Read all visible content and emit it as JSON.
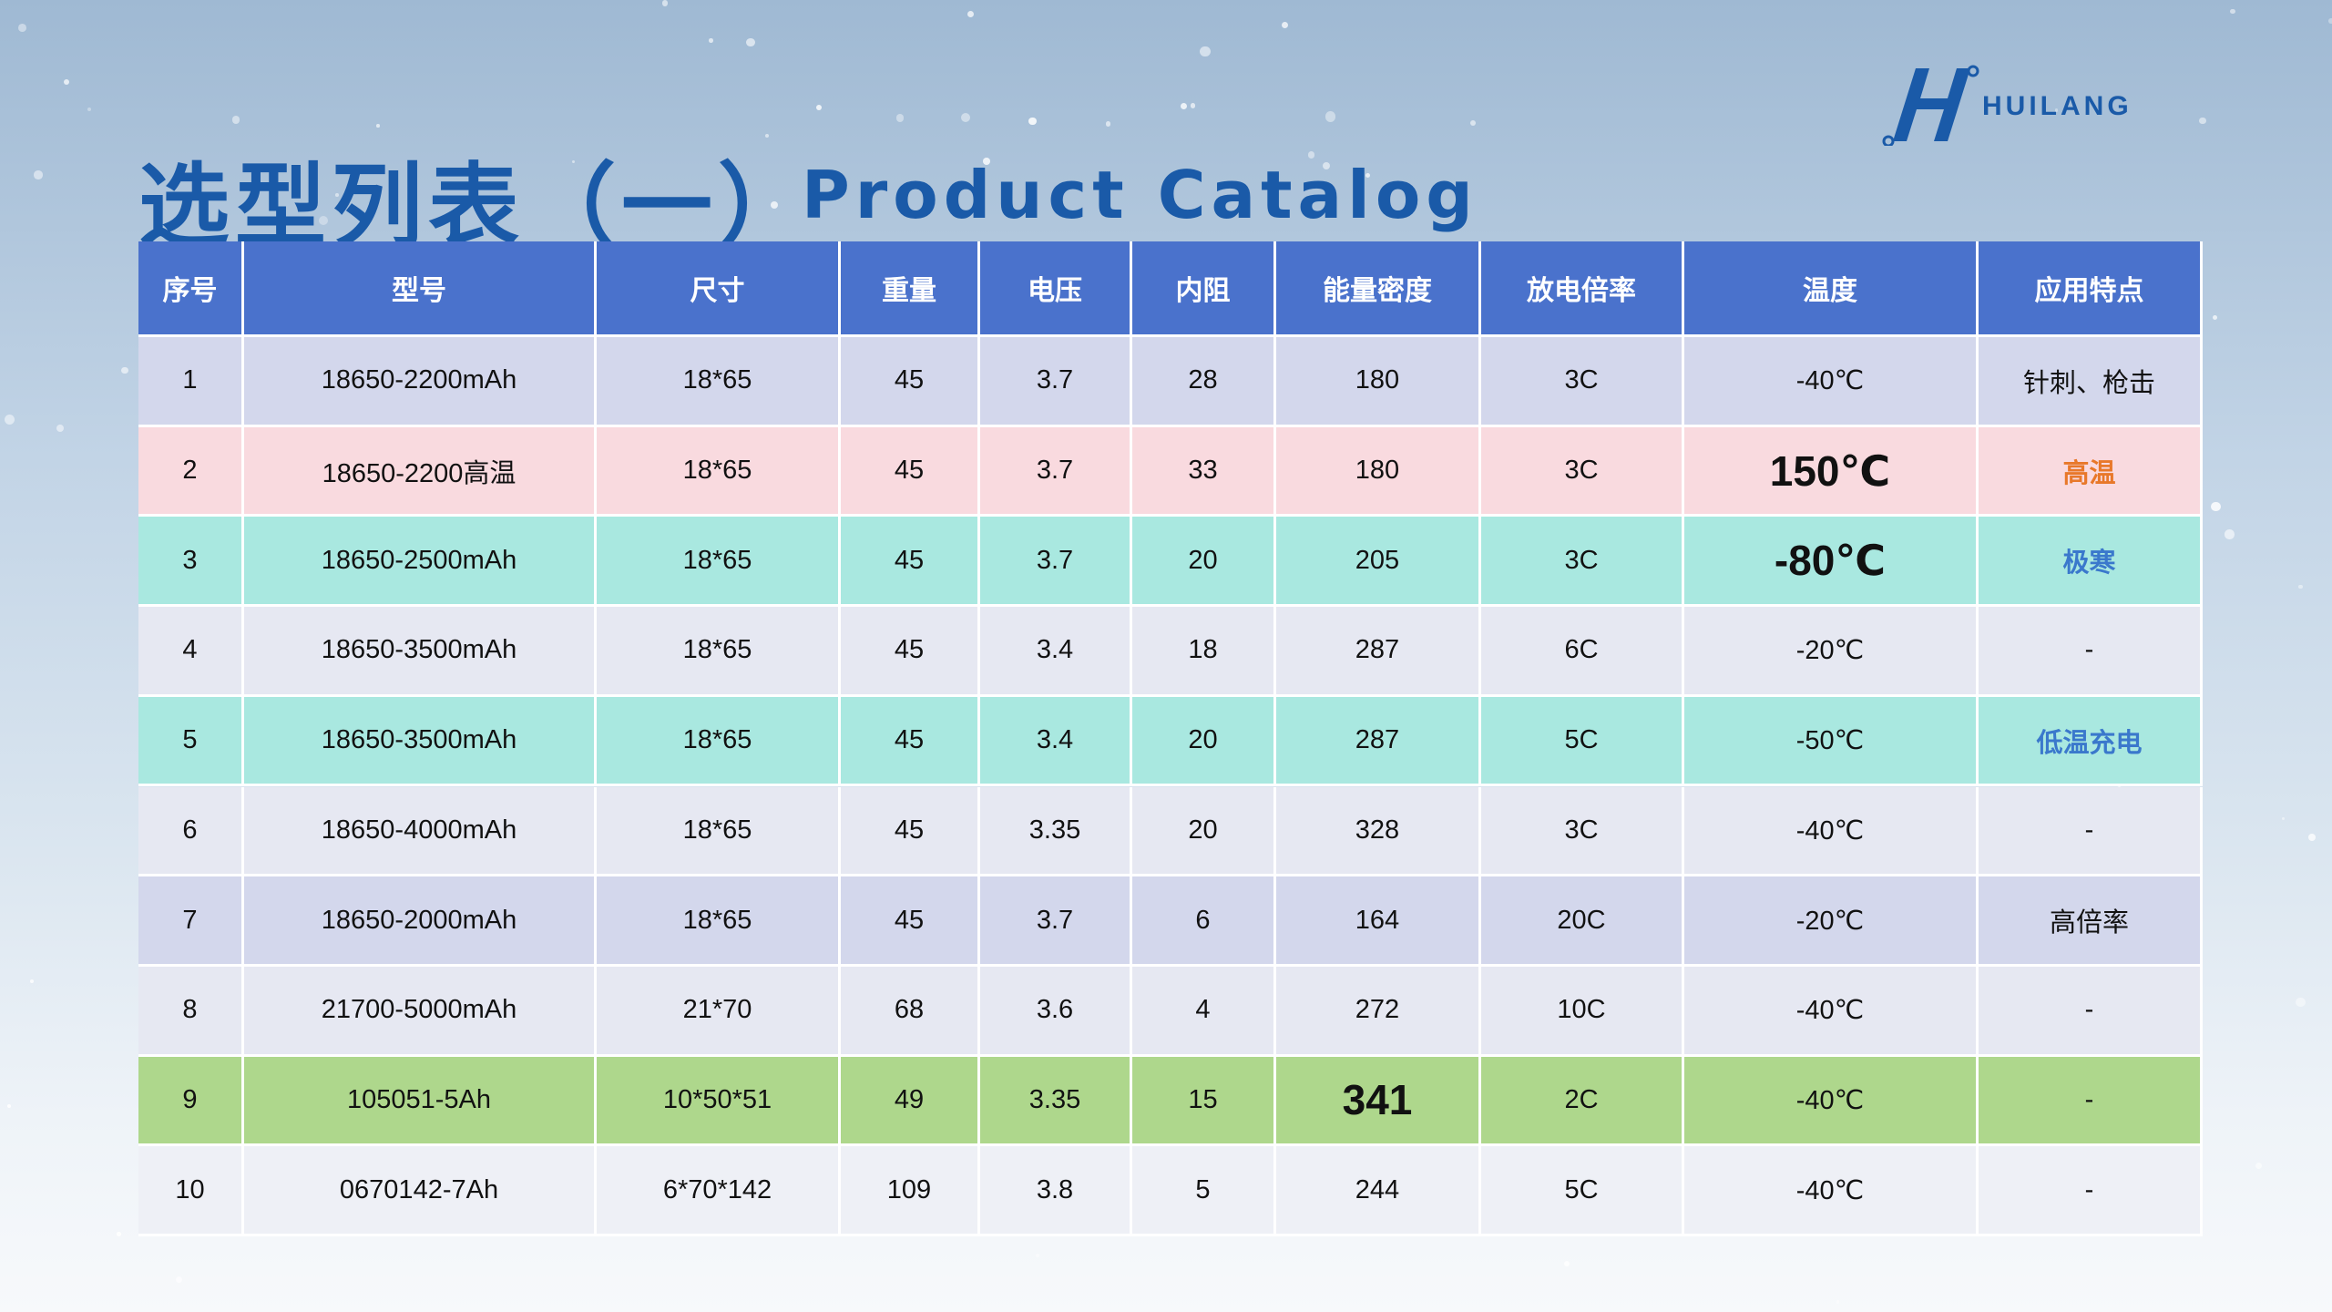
{
  "header": {
    "title": "选型列表（一）",
    "subtitle": "Product Catalog",
    "logo": "HUILANG"
  },
  "table": {
    "columns": [
      "序号",
      "型号",
      "尺寸",
      "重量",
      "电压",
      "内阻",
      "能量密度",
      "放电倍率",
      "温度",
      "应用特点"
    ],
    "rows": [
      [
        "1",
        "18650-2200mAh",
        "18*65",
        "45",
        "3.7",
        "28",
        "180",
        "3C",
        "-40℃",
        "针刺、枪击"
      ],
      [
        "2",
        "18650-2200高温",
        "18*65",
        "45",
        "3.7",
        "33",
        "180",
        "3C",
        "150℃",
        "高温"
      ],
      [
        "3",
        "18650-2500mAh",
        "18*65",
        "45",
        "3.7",
        "20",
        "205",
        "3C",
        "-80℃",
        "极寒"
      ],
      [
        "4",
        "18650-3500mAh",
        "18*65",
        "45",
        "3.4",
        "18",
        "287",
        "6C",
        "-20℃",
        "-"
      ],
      [
        "5",
        "18650-3500mAh",
        "18*65",
        "45",
        "3.4",
        "20",
        "287",
        "5C",
        "-50℃",
        "低温充电"
      ],
      [
        "6",
        "18650-4000mAh",
        "18*65",
        "45",
        "3.35",
        "20",
        "328",
        "3C",
        "-40℃",
        "-"
      ],
      [
        "7",
        "18650-2000mAh",
        "18*65",
        "45",
        "3.7",
        "6",
        "164",
        "20C",
        "-20℃",
        "高倍率"
      ],
      [
        "8",
        "21700-5000mAh",
        "21*70",
        "68",
        "3.6",
        "4",
        "272",
        "10C",
        "-40℃",
        "-"
      ],
      [
        "9",
        "105051-5Ah",
        "10*50*51",
        "49",
        "3.35",
        "15",
        "341",
        "2C",
        "-40℃",
        "-"
      ],
      [
        "10",
        "0670142-7Ah",
        "6*70*142",
        "109",
        "3.8",
        "5",
        "244",
        "5C",
        "-40℃",
        "-"
      ]
    ]
  }
}
